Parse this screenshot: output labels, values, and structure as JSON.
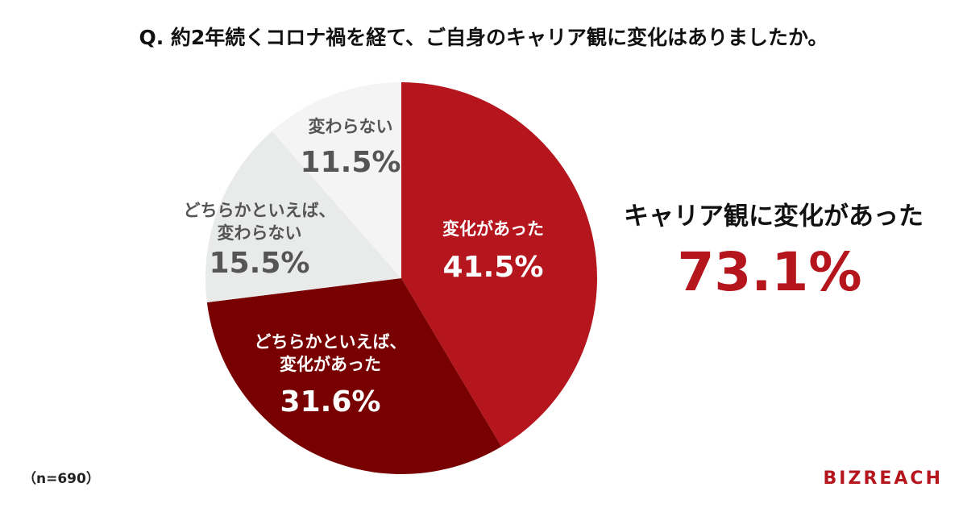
{
  "chart_data": {
    "type": "pie",
    "title": "Q. 約2年続くコロナ禍を経て、ご自身のキャリア観に変化はありましたか。",
    "categories": [
      [
        "変化があった"
      ],
      [
        "どちらかといえば、",
        "変化があった"
      ],
      [
        "どちらかといえば、",
        "変わらない"
      ],
      [
        "変わらない"
      ]
    ],
    "values": [
      41.5,
      31.6,
      15.5,
      11.5
    ],
    "value_labels": [
      "41.5%",
      "31.6%",
      "15.5%",
      "11.5%"
    ],
    "colors": [
      "#b5161e",
      "#780000",
      "#e9eaea",
      "#f4f4f4"
    ],
    "summary_label": "キャリア観に変化があった",
    "summary_value_label": "73.1%",
    "note": "（n=690）",
    "brand": "BIZREACH"
  }
}
